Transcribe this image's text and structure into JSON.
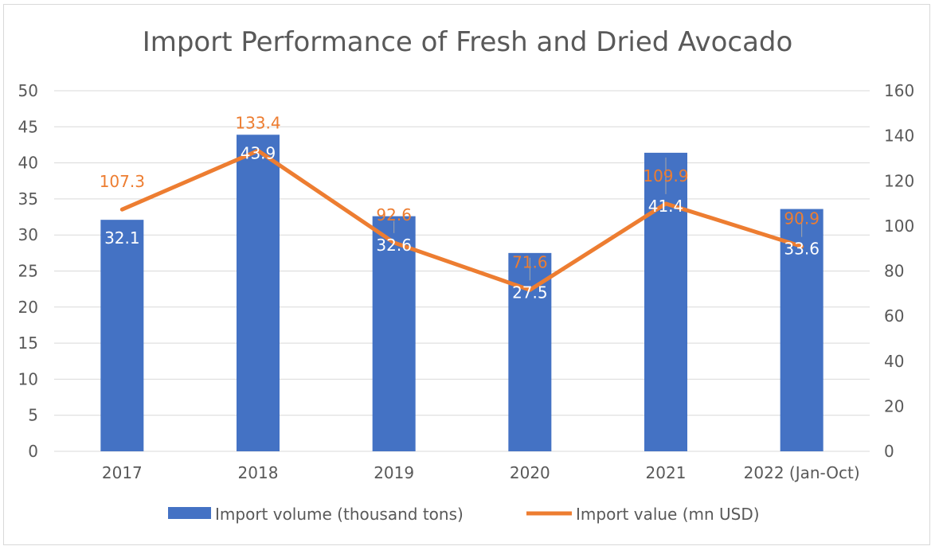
{
  "chart_data": {
    "type": "bar",
    "title": "Import Performance of Fresh and Dried Avocado",
    "categories": [
      "2017",
      "2018",
      "2019",
      "2020",
      "2021",
      "2022 (Jan-Oct)"
    ],
    "series": [
      {
        "name": "Import volume (thousand tons)",
        "type": "bar",
        "axis": "left",
        "color": "#4472c4",
        "values": [
          32.1,
          43.9,
          32.6,
          27.5,
          41.4,
          33.6
        ]
      },
      {
        "name": "Import value (mn USD)",
        "type": "line",
        "axis": "right",
        "color": "#ed7d31",
        "values": [
          107.3,
          133.4,
          92.6,
          71.6,
          109.9,
          90.9
        ]
      }
    ],
    "y_left": {
      "min": 0,
      "max": 50,
      "ticks": [
        "0",
        "5",
        "10",
        "15",
        "20",
        "25",
        "30",
        "35",
        "40",
        "45",
        "50"
      ]
    },
    "y_right": {
      "min": 0,
      "max": 160,
      "ticks": [
        "0",
        "20",
        "40",
        "60",
        "80",
        "100",
        "120",
        "140",
        "160"
      ]
    },
    "grid": true,
    "legend_position": "bottom"
  }
}
